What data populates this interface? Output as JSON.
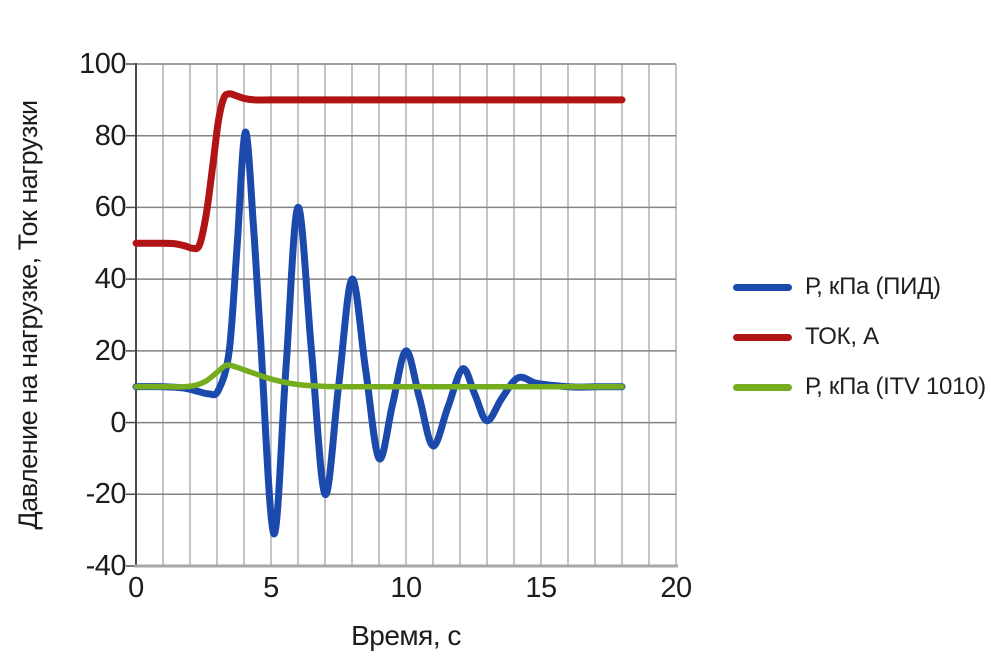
{
  "chart_data": {
    "type": "line",
    "title": "",
    "xlabel": "Время, с",
    "ylabel": "Давление на нагрузке, Ток нагрузки",
    "xlim": [
      0,
      20
    ],
    "ylim": [
      -40,
      100
    ],
    "x_ticks": [
      0,
      5,
      10,
      15,
      20
    ],
    "y_ticks": [
      100,
      80,
      60,
      40,
      20,
      0,
      -20,
      -40
    ],
    "x_minor_step": 1,
    "y_major_step": 20,
    "grid": "on",
    "legend_position": "right-middle",
    "colors": {
      "text": "#1c1c1c",
      "grid_minor": "#9e9e9e",
      "grid_major": "#838383",
      "axis_left": "#4a4a4a",
      "axis_bottom": "#a8a8a8",
      "background": "#ffffff"
    },
    "series": [
      {
        "name": "Р, кПа (ПИД)",
        "color": "#1b49ac",
        "stroke_width": 7,
        "points": [
          [
            0,
            10
          ],
          [
            1,
            10
          ],
          [
            1.7,
            9.7
          ],
          [
            2.2,
            8.9
          ],
          [
            2.7,
            8
          ],
          [
            3.05,
            9
          ],
          [
            3.45,
            20
          ],
          [
            3.75,
            50
          ],
          [
            4.05,
            81
          ],
          [
            4.35,
            55
          ],
          [
            4.6,
            25
          ],
          [
            5.1,
            -31
          ],
          [
            5.55,
            15
          ],
          [
            6,
            60
          ],
          [
            6.5,
            20
          ],
          [
            7,
            -20
          ],
          [
            7.5,
            10
          ],
          [
            8,
            40
          ],
          [
            8.5,
            15
          ],
          [
            9,
            -10
          ],
          [
            9.5,
            5
          ],
          [
            10,
            20
          ],
          [
            10.5,
            6.8
          ],
          [
            11,
            -6.5
          ],
          [
            11.55,
            4.3
          ],
          [
            12.1,
            15
          ],
          [
            12.55,
            7.8
          ],
          [
            13,
            0.5
          ],
          [
            13.55,
            6.8
          ],
          [
            14.15,
            12.5
          ],
          [
            14.8,
            11
          ],
          [
            15.5,
            10.3
          ],
          [
            16.3,
            9.9
          ],
          [
            17,
            10
          ],
          [
            18,
            10
          ]
        ]
      },
      {
        "name": "ТОК, А",
        "color": "#b01414",
        "stroke_width": 7,
        "points": [
          [
            0,
            50
          ],
          [
            0.8,
            50
          ],
          [
            1.4,
            49.9
          ],
          [
            1.8,
            49.3
          ],
          [
            2.1,
            48.6
          ],
          [
            2.35,
            49.5
          ],
          [
            2.6,
            58
          ],
          [
            2.85,
            72
          ],
          [
            3.05,
            84
          ],
          [
            3.25,
            90.5
          ],
          [
            3.45,
            91.7
          ],
          [
            3.7,
            91.2
          ],
          [
            4,
            90.4
          ],
          [
            4.4,
            90
          ],
          [
            5,
            90
          ],
          [
            7,
            90
          ],
          [
            10,
            90
          ],
          [
            14,
            90
          ],
          [
            18,
            90
          ]
        ]
      },
      {
        "name": "Р, кПа (ITV 1010)",
        "color": "#76ad1f",
        "stroke_width": 5.5,
        "points": [
          [
            0,
            10
          ],
          [
            1,
            10
          ],
          [
            1.8,
            10
          ],
          [
            2.2,
            10.4
          ],
          [
            2.6,
            11.6
          ],
          [
            3,
            14
          ],
          [
            3.35,
            16
          ],
          [
            3.7,
            15.5
          ],
          [
            4.2,
            14.2
          ],
          [
            4.8,
            12.6
          ],
          [
            5.4,
            11.4
          ],
          [
            6,
            10.6
          ],
          [
            6.7,
            10.2
          ],
          [
            7.5,
            10
          ],
          [
            9,
            10
          ],
          [
            12,
            10
          ],
          [
            15,
            10
          ],
          [
            18,
            10
          ]
        ]
      }
    ]
  }
}
